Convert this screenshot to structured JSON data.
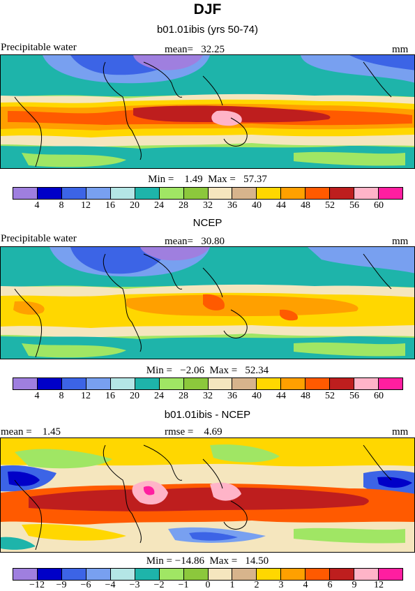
{
  "figure_title": "DJF",
  "panels": [
    {
      "subtitle": "b01.01ibis (yrs 50-74)",
      "left_label": "Precipitable water",
      "center_label": "mean=   32.25",
      "right_label": "mm",
      "minmax": "Min =    1.49  Max =   57.37",
      "colorbar": {
        "colors": [
          "#9f7fdf",
          "#0000c8",
          "#3c64e6",
          "#78a0f0",
          "#b4e6e6",
          "#1eb4aa",
          "#a0e664",
          "#8cc83c",
          "#f5e6be",
          "#d7b48c",
          "#ffd700",
          "#ffa000",
          "#ff5a00",
          "#be1e1e",
          "#ffb4c8",
          "#ff1ea0"
        ],
        "labels": [
          "4",
          "8",
          "12",
          "16",
          "20",
          "24",
          "28",
          "32",
          "36",
          "40",
          "44",
          "48",
          "52",
          "56",
          "60"
        ]
      }
    },
    {
      "subtitle": "NCEP",
      "left_label": "Precipitable water",
      "center_label": "mean=   30.80",
      "right_label": "mm",
      "minmax": "Min =   −2.06  Max =   52.34",
      "colorbar": {
        "colors": [
          "#9f7fdf",
          "#0000c8",
          "#3c64e6",
          "#78a0f0",
          "#b4e6e6",
          "#1eb4aa",
          "#a0e664",
          "#8cc83c",
          "#f5e6be",
          "#d7b48c",
          "#ffd700",
          "#ffa000",
          "#ff5a00",
          "#be1e1e",
          "#ffb4c8",
          "#ff1ea0"
        ],
        "labels": [
          "4",
          "8",
          "12",
          "16",
          "20",
          "24",
          "28",
          "32",
          "36",
          "40",
          "44",
          "48",
          "52",
          "56",
          "60"
        ]
      }
    },
    {
      "subtitle": "b01.01ibis - NCEP",
      "left_label": "mean =    1.45",
      "center_label": "rmse =    4.69",
      "right_label": "mm",
      "minmax": "Min = −14.86  Max =   14.50",
      "colorbar": {
        "colors": [
          "#9f7fdf",
          "#0000c8",
          "#3c64e6",
          "#78a0f0",
          "#b4e6e6",
          "#1eb4aa",
          "#a0e664",
          "#8cc83c",
          "#f5e6be",
          "#d7b48c",
          "#ffd700",
          "#ffa000",
          "#ff5a00",
          "#be1e1e",
          "#ffb4c8",
          "#ff1ea0"
        ],
        "labels": [
          "−12",
          "−9",
          "−6",
          "−4",
          "−3",
          "−2",
          "−1",
          "0",
          "1",
          "2",
          "3",
          "4",
          "6",
          "9",
          "12"
        ]
      }
    }
  ]
}
